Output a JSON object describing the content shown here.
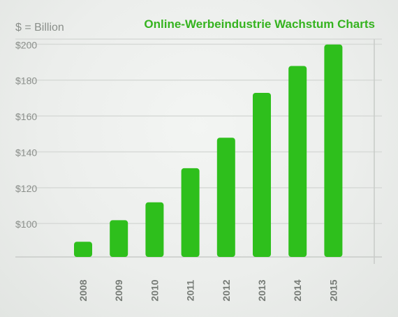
{
  "chart_data": {
    "type": "bar",
    "title": "Online-Werbeindustrie Wachstum Charts",
    "unit_label": "$ = Billion",
    "categories": [
      "2008",
      "2009",
      "2010",
      "2011",
      "2012",
      "2013",
      "2014",
      "2015"
    ],
    "values": [
      100,
      112,
      122,
      141,
      158,
      183,
      198,
      210
    ],
    "ytick_values": [
      100,
      120,
      140,
      160,
      180,
      200
    ],
    "ytick_labels": [
      "$100",
      "$120",
      "$140",
      "$160",
      "$180",
      "$200"
    ],
    "ylim": [
      91.5,
      213
    ],
    "xlabel": "",
    "ylabel": "",
    "grid": true,
    "colors": {
      "bar": "#2ebf1c",
      "title": "#35b31f"
    }
  }
}
